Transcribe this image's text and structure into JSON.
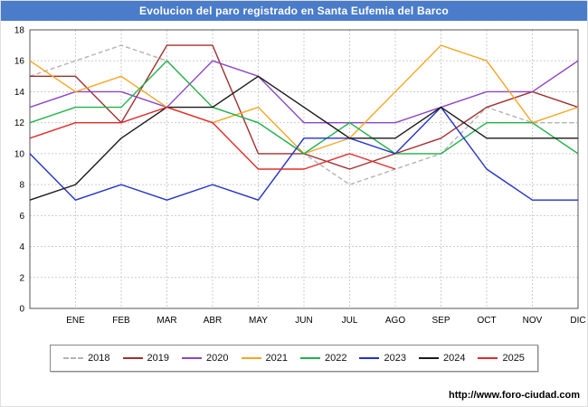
{
  "title": "Evolucion del paro registrado en Santa Eufemia del Barco",
  "footer": {
    "url": "http://www.foro-ciudad.com"
  },
  "chart_data": {
    "type": "line",
    "title": "Evolucion del paro registrado en Santa Eufemia del Barco",
    "xlabel": "",
    "ylabel": "",
    "ylim": [
      0,
      18
    ],
    "ytick_step": 2,
    "grid": true,
    "legend_position": "bottom",
    "x_labels": [
      "",
      "ENE",
      "FEB",
      "MAR",
      "ABR",
      "MAY",
      "JUN",
      "JUL",
      "AGO",
      "SEP",
      "OCT",
      "NOV",
      "DIC"
    ],
    "series": [
      {
        "name": "2018",
        "color": "#b3b3b3",
        "dash": true,
        "values": [
          15,
          16,
          17,
          16,
          13,
          12,
          10,
          8,
          9,
          10,
          13,
          12,
          12
        ]
      },
      {
        "name": "2019",
        "color": "#a03030",
        "dash": false,
        "values": [
          15,
          15,
          12,
          17,
          17,
          10,
          10,
          9,
          10,
          11,
          13,
          14,
          13
        ]
      },
      {
        "name": "2020",
        "color": "#8c46c8",
        "dash": false,
        "values": [
          13,
          14,
          14,
          13,
          16,
          15,
          12,
          12,
          12,
          13,
          14,
          14,
          16
        ]
      },
      {
        "name": "2021",
        "color": "#f5a623",
        "dash": false,
        "values": [
          16,
          14,
          15,
          13,
          12,
          13,
          10,
          11,
          14,
          17,
          16,
          12,
          13
        ]
      },
      {
        "name": "2022",
        "color": "#21b24b",
        "dash": false,
        "values": [
          12,
          13,
          13,
          16,
          13,
          12,
          10,
          12,
          10,
          10,
          12,
          12,
          10
        ]
      },
      {
        "name": "2023",
        "color": "#2432c8",
        "dash": false,
        "values": [
          10,
          7,
          8,
          7,
          8,
          7,
          11,
          11,
          10,
          13,
          9,
          7,
          7
        ]
      },
      {
        "name": "2024",
        "color": "#1a1a1a",
        "dash": false,
        "values": [
          7,
          8,
          11,
          13,
          13,
          15,
          13,
          11,
          11,
          13,
          11,
          11,
          11
        ]
      },
      {
        "name": "2025",
        "color": "#e02b2b",
        "dash": false,
        "values": [
          11,
          12,
          12,
          13,
          12,
          9,
          9,
          10,
          9,
          null,
          null,
          null,
          null
        ]
      }
    ]
  }
}
